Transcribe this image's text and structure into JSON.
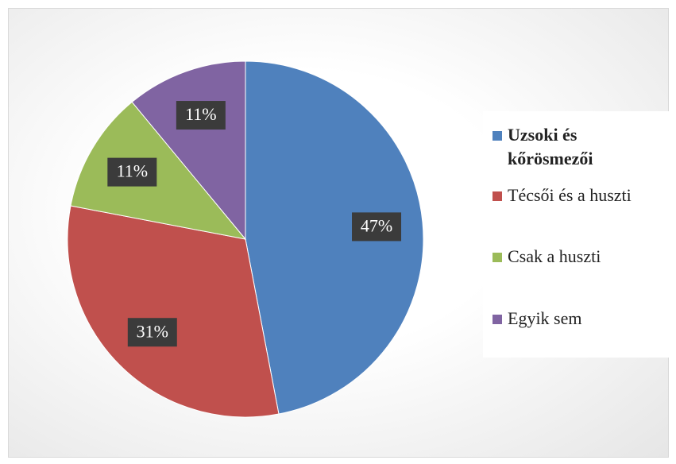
{
  "chart_data": {
    "type": "pie",
    "categories": [
      "Uzsoki és kőrösmezői",
      "Técsői és a huszti",
      "Csak a huszti",
      "Egyik sem"
    ],
    "values": [
      47,
      31,
      11,
      11
    ],
    "value_labels": [
      "47%",
      "31%",
      "11%",
      "11%"
    ],
    "colors": [
      "#4f81bd",
      "#c0504d",
      "#9bbb59",
      "#8064a2"
    ],
    "legend": "right"
  }
}
